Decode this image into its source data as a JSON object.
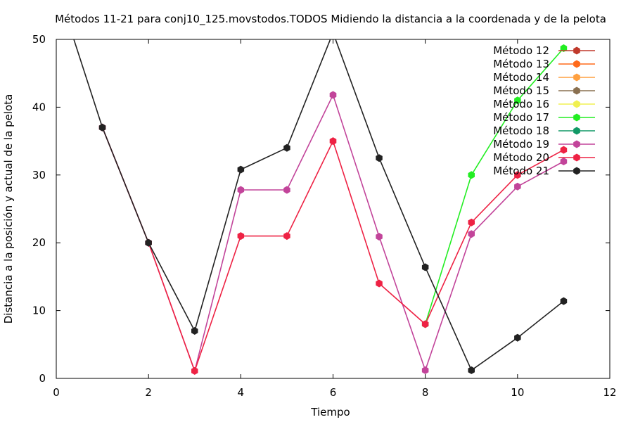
{
  "chart_data": {
    "type": "line",
    "title": "Métodos 11-21 para conj10_125.movstodos.TODOS Midiendo la distancia a la coordenada y de la pelota",
    "xlabel": "Tiempo",
    "ylabel": "Distancia a la posición y actual de la pelota",
    "xlim": [
      0,
      12
    ],
    "ylim": [
      0,
      50
    ],
    "xticks": [
      "0",
      "2",
      "4",
      "6",
      "8",
      "10",
      "12"
    ],
    "yticks": [
      "0",
      "10",
      "20",
      "30",
      "40",
      "50"
    ],
    "grid": false,
    "legend_position": "top-right",
    "series": [
      {
        "name": "Método 12",
        "color": "#c0392b",
        "x": [],
        "y": []
      },
      {
        "name": "Método 13",
        "color": "#ff6a1a",
        "x": [],
        "y": []
      },
      {
        "name": "Método 14",
        "color": "#ffa040",
        "x": [],
        "y": []
      },
      {
        "name": "Método 15",
        "color": "#8a7050",
        "x": [],
        "y": []
      },
      {
        "name": "Método 16",
        "color": "#f0f050",
        "x": [],
        "y": []
      },
      {
        "name": "Método 17",
        "color": "#22ee22",
        "x": [
          8,
          9,
          10,
          11
        ],
        "y": [
          8,
          30,
          41,
          48.7
        ]
      },
      {
        "name": "Método 18",
        "color": "#119966",
        "x": [],
        "y": []
      },
      {
        "name": "Método 19",
        "color": "#c2449a",
        "x": [
          1,
          2,
          3,
          4,
          5,
          6,
          7,
          8,
          9,
          10,
          11
        ],
        "y": [
          37,
          20,
          1.1,
          27.8,
          27.8,
          41.8,
          20.9,
          1.2,
          21.3,
          28.3,
          32
        ]
      },
      {
        "name": "Método 20",
        "color": "#ee2244",
        "x": [
          1,
          2,
          3,
          4,
          5,
          6,
          7,
          8,
          9,
          10,
          11
        ],
        "y": [
          37,
          20,
          1.1,
          21,
          21,
          35,
          14,
          8,
          23,
          30,
          33.7
        ]
      },
      {
        "name": "Método 21",
        "color": "#222222",
        "x": [
          0,
          1,
          2,
          3,
          4,
          5,
          6,
          7,
          8,
          9,
          10,
          11
        ],
        "y": [
          58,
          37,
          20,
          7,
          30.8,
          34,
          51,
          32.5,
          16.4,
          1.2,
          6,
          11.4
        ]
      }
    ]
  }
}
